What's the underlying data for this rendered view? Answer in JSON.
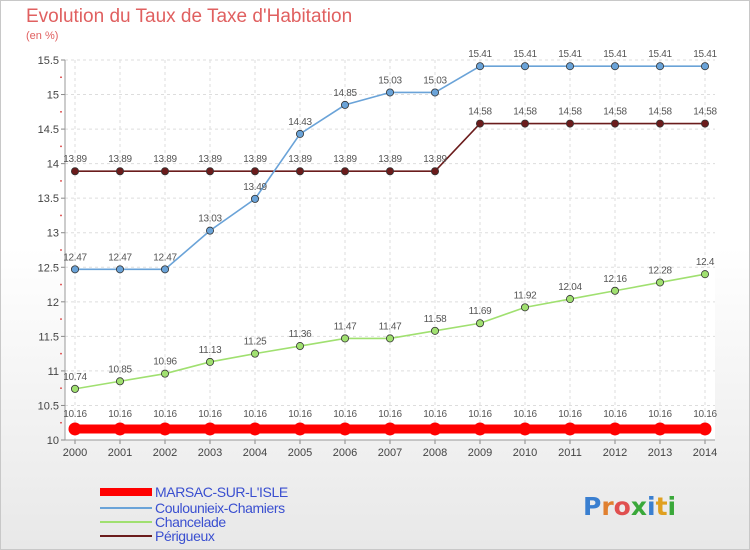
{
  "title": "Evolution du Taux de Taxe d'Habitation",
  "subtitle": "(en %)",
  "brand": "Proxiti",
  "chart_data": {
    "type": "line",
    "title": "Evolution du Taux de Taxe d'Habitation",
    "ylabel": "(en %)",
    "xlabel": "",
    "x": [
      "2000",
      "2001",
      "2002",
      "2003",
      "2004",
      "2005",
      "2006",
      "2007",
      "2008",
      "2009",
      "2010",
      "2011",
      "2012",
      "2013",
      "2014"
    ],
    "ylim": [
      10,
      15.5
    ],
    "yticks": [
      "10",
      "10.5",
      "11",
      "11.5",
      "12",
      "12.5",
      "13",
      "13.5",
      "14",
      "14.5",
      "15",
      "15.5"
    ],
    "grid": true,
    "legend_position": "bottom-left",
    "series": [
      {
        "name": "MARSAC-SUR-L'ISLE",
        "color": "#ff0000",
        "labels": [
          "10.16",
          "10.16",
          "10.16",
          "10.16",
          "10.16",
          "10.16",
          "10.16",
          "10.16",
          "10.16",
          "10.16",
          "10.16",
          "10.16",
          "10.16",
          "10.16",
          "10.16"
        ],
        "values": [
          10.16,
          10.16,
          10.16,
          10.16,
          10.16,
          10.16,
          10.16,
          10.16,
          10.16,
          10.16,
          10.16,
          10.16,
          10.16,
          10.16,
          10.16
        ]
      },
      {
        "name": "Coulounieix-Chamiers",
        "color": "#6aa3d8",
        "labels": [
          "12.47",
          "12.47",
          "12.47",
          "13.03",
          "13.49",
          "14.43",
          "14.85",
          "15.03",
          "15.03",
          "15.41",
          "15.41",
          "15.41",
          "15.41",
          "15.41",
          "15.41"
        ],
        "values": [
          12.47,
          12.47,
          12.47,
          13.03,
          13.49,
          14.43,
          14.85,
          15.03,
          15.03,
          15.41,
          15.41,
          15.41,
          15.41,
          15.41,
          15.41
        ]
      },
      {
        "name": "Chancelade",
        "color": "#a0e070",
        "labels": [
          "10.74",
          "10.85",
          "10.96",
          "11.13",
          "11.25",
          "11.36",
          "11.47",
          "11.47",
          "11.58",
          "11.69",
          "11.92",
          "12.04",
          "12.16",
          "12.28",
          "12.4"
        ],
        "values": [
          10.74,
          10.85,
          10.96,
          11.13,
          11.25,
          11.36,
          11.47,
          11.47,
          11.58,
          11.69,
          11.92,
          12.04,
          12.16,
          12.28,
          12.4
        ]
      },
      {
        "name": "Périgueux",
        "color": "#6b1c1c",
        "labels": [
          "13.89",
          "13.89",
          "13.89",
          "13.89",
          "13.89",
          "13.89",
          "13.89",
          "13.89",
          "13.89",
          "14.58",
          "14.58",
          "14.58",
          "14.58",
          "14.58",
          "14.58"
        ],
        "values": [
          13.89,
          13.89,
          13.89,
          13.89,
          13.89,
          13.89,
          13.89,
          13.89,
          13.89,
          14.58,
          14.58,
          14.58,
          14.58,
          14.58,
          14.58
        ]
      }
    ]
  }
}
